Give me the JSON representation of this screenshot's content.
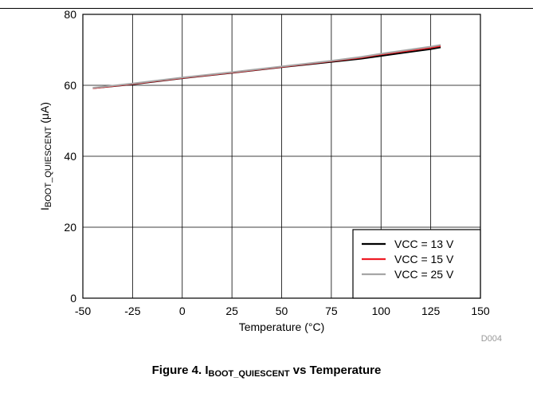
{
  "chart_data": {
    "type": "line",
    "xlabel": "Temperature (°C)",
    "ylabel_main": "I",
    "ylabel_sub": "BOOT_QUIESCENT",
    "ylabel_unit": " (μA)",
    "xlim": [
      -50,
      150
    ],
    "ylim": [
      0,
      80
    ],
    "xticks": [
      "-50",
      "-25",
      "0",
      "25",
      "50",
      "75",
      "100",
      "125",
      "150"
    ],
    "yticks": [
      "0",
      "20",
      "40",
      "60",
      "80"
    ],
    "grid": true,
    "legend_position": "bottom-right",
    "x": [
      -45,
      -25,
      0,
      25,
      50,
      75,
      90,
      100,
      125,
      130
    ],
    "series": [
      {
        "name": "VCC = 13 V",
        "color": "#000000",
        "values": [
          59.2,
          60.3,
          62.0,
          63.5,
          65.1,
          66.6,
          67.5,
          68.3,
          70.2,
          70.7
        ]
      },
      {
        "name": "VCC = 15 V",
        "color": "#ee1c25",
        "values": [
          59.2,
          60.4,
          62.1,
          63.6,
          65.2,
          66.8,
          67.8,
          68.7,
          70.6,
          71.1
        ]
      },
      {
        "name": "VCC = 25 V",
        "color": "#a6a6a6",
        "values": [
          59.3,
          60.5,
          62.2,
          63.7,
          65.3,
          66.9,
          68.0,
          68.9,
          70.9,
          71.4
        ]
      }
    ],
    "code": "D004"
  },
  "caption": {
    "prefix": "Figure 4. I",
    "sub": "BOOT_QUIESCENT",
    "suffix": " vs Temperature"
  }
}
